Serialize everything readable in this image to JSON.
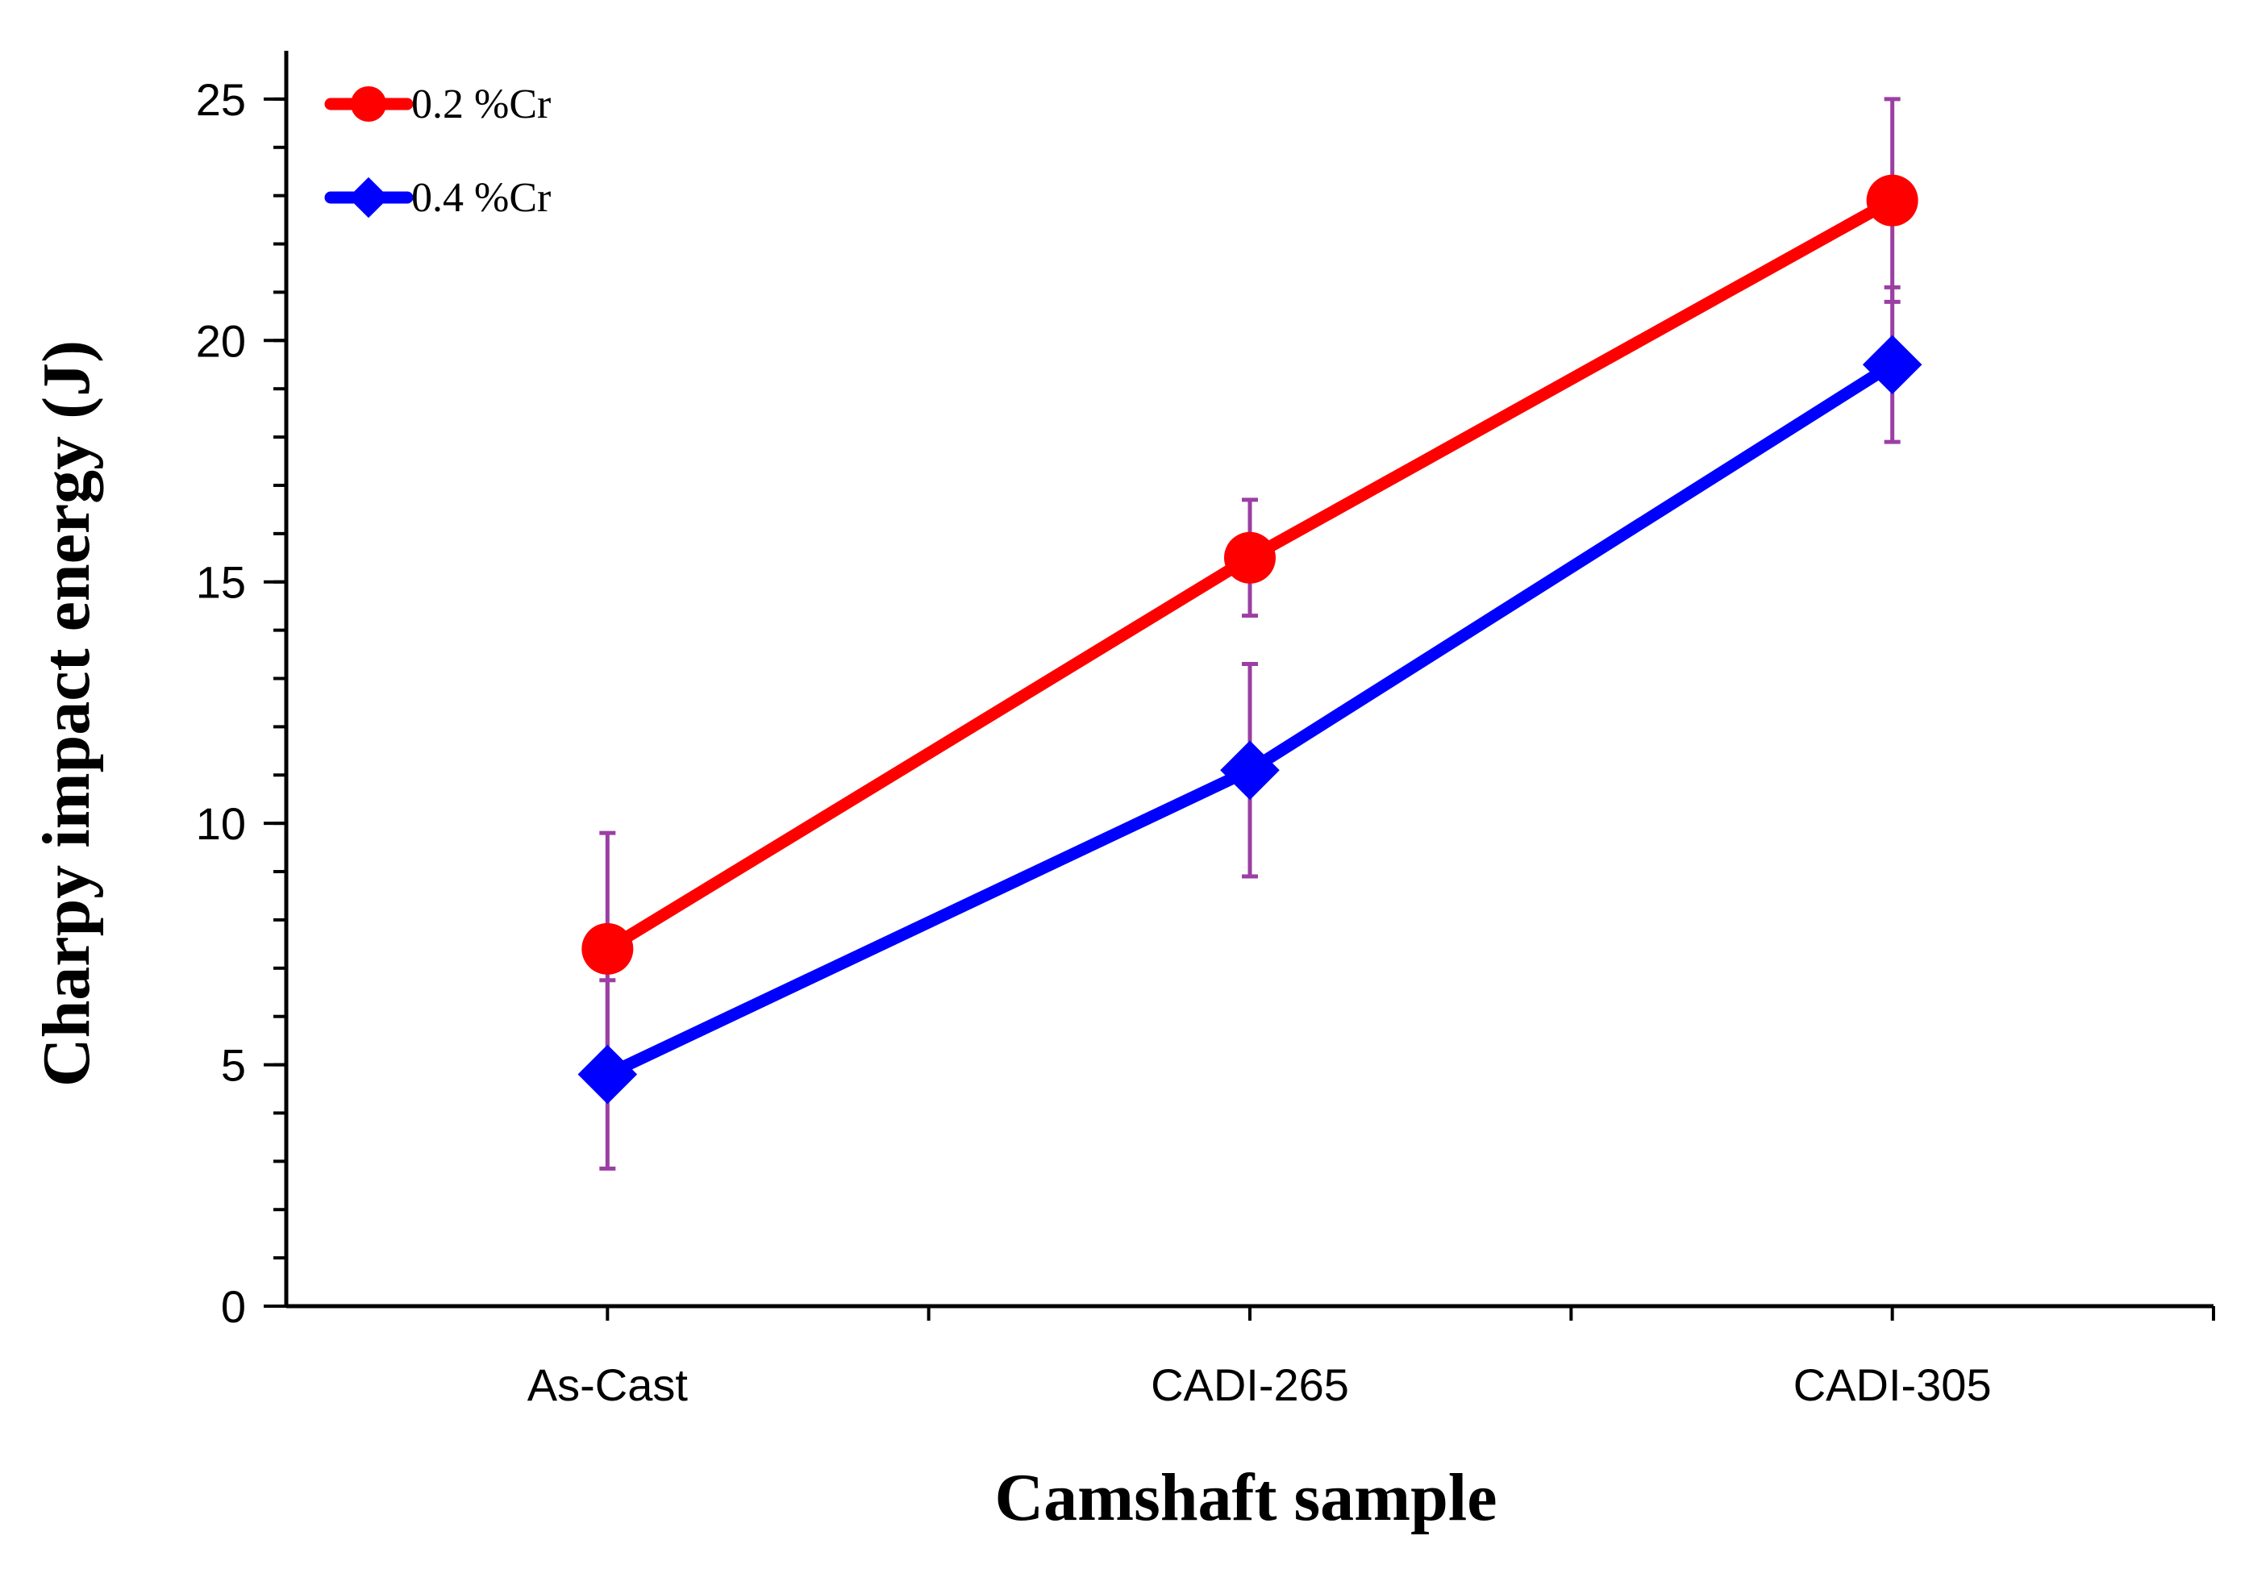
{
  "chart_data": {
    "type": "line",
    "title": "",
    "xlabel": "Camshaft sample",
    "ylabel": "Charpy impact energy (J)",
    "categories": [
      "As-Cast",
      "CADI-265",
      "CADI-305"
    ],
    "ylim": [
      0,
      26
    ],
    "yticks": [
      0,
      5,
      10,
      15,
      20,
      25
    ],
    "ytick_labels": [
      "0",
      "5",
      "10",
      "15",
      "20",
      "25"
    ],
    "minor_tick_step": 1,
    "grid": false,
    "legend_position": "top-left",
    "series": [
      {
        "name": "0.2 %Cr",
        "marker": "circle",
        "color": "#ff0000",
        "values": [
          7.4,
          15.5,
          22.9
        ],
        "errors": [
          2.4,
          1.2,
          2.1
        ]
      },
      {
        "name": "0.4 %Cr",
        "marker": "diamond",
        "color": "#0000ff",
        "values": [
          4.8,
          11.1,
          19.5
        ],
        "errors": [
          1.95,
          2.2,
          1.6
        ]
      }
    ],
    "error_bar_color": "#9b3fa3"
  }
}
